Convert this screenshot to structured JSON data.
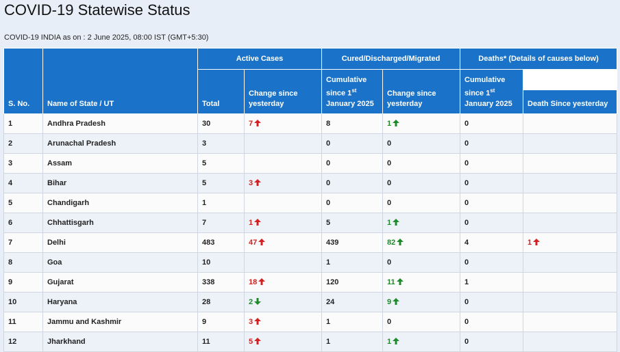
{
  "page": {
    "title": "COVID-19 Statewise Status",
    "as_of": "COVID-19 INDIA as on : 2 June 2025, 08:00 IST (GMT+5:30)"
  },
  "table": {
    "group_headers": {
      "active": "Active Cases",
      "cured": "Cured/Discharged/Migrated",
      "deaths": "Deaths* (Details of causes below)"
    },
    "columns": {
      "sno": "S. No.",
      "state": "Name of State / UT",
      "active_total": "Total",
      "active_change": "Change since yesterday",
      "cured_cum_pre": "Cumulative since 1",
      "cured_cum_sup": "st",
      "cured_cum_post": "January 2025",
      "cured_change": "Change since yesterday",
      "deaths_cum_pre": "Cumulative since 1",
      "deaths_cum_sup": "st",
      "deaths_cum_post": "January 2025",
      "deaths_since": "Death Since yesterday"
    },
    "colors": {
      "header_bg": "#1a73c8",
      "increase_red": "#d42020",
      "change_green": "#1e8a2a"
    },
    "rows": [
      {
        "sno": "1",
        "state": "Andhra Pradesh",
        "active": "30",
        "active_change": "7",
        "active_dir": "up-red",
        "cured": "8",
        "cured_change": "1",
        "cured_dir": "up-green",
        "deaths": "0",
        "death_change": "",
        "death_dir": ""
      },
      {
        "sno": "2",
        "state": "Arunachal Pradesh",
        "active": "3",
        "active_change": "",
        "active_dir": "",
        "cured": "0",
        "cured_change": "0",
        "cured_dir": "",
        "deaths": "0",
        "death_change": "",
        "death_dir": ""
      },
      {
        "sno": "3",
        "state": "Assam",
        "active": "5",
        "active_change": "",
        "active_dir": "",
        "cured": "0",
        "cured_change": "0",
        "cured_dir": "",
        "deaths": "0",
        "death_change": "",
        "death_dir": ""
      },
      {
        "sno": "4",
        "state": "Bihar",
        "active": "5",
        "active_change": "3",
        "active_dir": "up-red",
        "cured": "0",
        "cured_change": "0",
        "cured_dir": "",
        "deaths": "0",
        "death_change": "",
        "death_dir": ""
      },
      {
        "sno": "5",
        "state": "Chandigarh",
        "active": "1",
        "active_change": "",
        "active_dir": "",
        "cured": "0",
        "cured_change": "0",
        "cured_dir": "",
        "deaths": "0",
        "death_change": "",
        "death_dir": ""
      },
      {
        "sno": "6",
        "state": "Chhattisgarh",
        "active": "7",
        "active_change": "1",
        "active_dir": "up-red",
        "cured": "5",
        "cured_change": "1",
        "cured_dir": "up-green",
        "deaths": "0",
        "death_change": "",
        "death_dir": ""
      },
      {
        "sno": "7",
        "state": "Delhi",
        "active": "483",
        "active_change": "47",
        "active_dir": "up-red",
        "cured": "439",
        "cured_change": "82",
        "cured_dir": "up-green",
        "deaths": "4",
        "death_change": "1",
        "death_dir": "up-red"
      },
      {
        "sno": "8",
        "state": "Goa",
        "active": "10",
        "active_change": "",
        "active_dir": "",
        "cured": "1",
        "cured_change": "0",
        "cured_dir": "",
        "deaths": "0",
        "death_change": "",
        "death_dir": ""
      },
      {
        "sno": "9",
        "state": "Gujarat",
        "active": "338",
        "active_change": "18",
        "active_dir": "up-red",
        "cured": "120",
        "cured_change": "11",
        "cured_dir": "up-green",
        "deaths": "1",
        "death_change": "",
        "death_dir": ""
      },
      {
        "sno": "10",
        "state": "Haryana",
        "active": "28",
        "active_change": "2",
        "active_dir": "down-green",
        "cured": "24",
        "cured_change": "9",
        "cured_dir": "up-green",
        "deaths": "0",
        "death_change": "",
        "death_dir": ""
      },
      {
        "sno": "11",
        "state": "Jammu and Kashmir",
        "active": "9",
        "active_change": "3",
        "active_dir": "up-red",
        "cured": "1",
        "cured_change": "0",
        "cured_dir": "",
        "deaths": "0",
        "death_change": "",
        "death_dir": ""
      },
      {
        "sno": "12",
        "state": "Jharkhand",
        "active": "11",
        "active_change": "5",
        "active_dir": "up-red",
        "cured": "1",
        "cured_change": "1",
        "cured_dir": "up-green",
        "deaths": "0",
        "death_change": "",
        "death_dir": ""
      }
    ]
  }
}
